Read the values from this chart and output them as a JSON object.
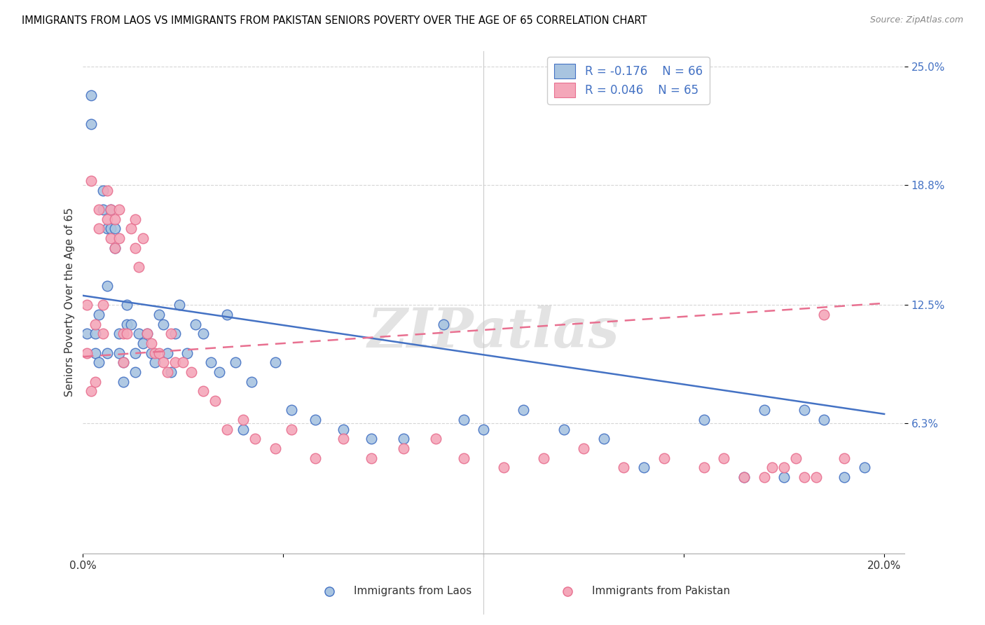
{
  "title": "IMMIGRANTS FROM LAOS VS IMMIGRANTS FROM PAKISTAN SENIORS POVERTY OVER THE AGE OF 65 CORRELATION CHART",
  "source": "Source: ZipAtlas.com",
  "ylabel": "Seniors Poverty Over the Age of 65",
  "xlabel_laos": "Immigrants from Laos",
  "xlabel_pakistan": "Immigrants from Pakistan",
  "xlim": [
    0.0,
    0.205
  ],
  "ylim": [
    -0.005,
    0.258
  ],
  "xticks": [
    0.0,
    0.05,
    0.1,
    0.15,
    0.2
  ],
  "xtick_labels": [
    "0.0%",
    "",
    "",
    "",
    "20.0%"
  ],
  "ytick_vals": [
    0.063,
    0.125,
    0.188,
    0.25
  ],
  "ytick_labels": [
    "6.3%",
    "12.5%",
    "18.8%",
    "25.0%"
  ],
  "laos_R": "-0.176",
  "laos_N": "66",
  "pakistan_R": "0.046",
  "pakistan_N": "65",
  "laos_color": "#a8c4e0",
  "pakistan_color": "#f4a7b9",
  "laos_line_color": "#4472c4",
  "pakistan_line_color": "#e87090",
  "watermark": "ZIPatlas",
  "laos_x": [
    0.001,
    0.002,
    0.002,
    0.003,
    0.003,
    0.004,
    0.004,
    0.005,
    0.005,
    0.006,
    0.006,
    0.006,
    0.007,
    0.007,
    0.008,
    0.008,
    0.009,
    0.009,
    0.01,
    0.01,
    0.011,
    0.011,
    0.012,
    0.013,
    0.013,
    0.014,
    0.015,
    0.016,
    0.017,
    0.018,
    0.019,
    0.02,
    0.021,
    0.022,
    0.023,
    0.024,
    0.026,
    0.028,
    0.03,
    0.032,
    0.034,
    0.036,
    0.038,
    0.04,
    0.042,
    0.048,
    0.052,
    0.058,
    0.065,
    0.072,
    0.08,
    0.09,
    0.095,
    0.1,
    0.11,
    0.12,
    0.13,
    0.14,
    0.155,
    0.165,
    0.17,
    0.175,
    0.18,
    0.185,
    0.19,
    0.195
  ],
  "laos_y": [
    0.11,
    0.235,
    0.22,
    0.11,
    0.1,
    0.12,
    0.095,
    0.185,
    0.175,
    0.165,
    0.135,
    0.1,
    0.175,
    0.165,
    0.165,
    0.155,
    0.11,
    0.1,
    0.095,
    0.085,
    0.125,
    0.115,
    0.115,
    0.1,
    0.09,
    0.11,
    0.105,
    0.11,
    0.1,
    0.095,
    0.12,
    0.115,
    0.1,
    0.09,
    0.11,
    0.125,
    0.1,
    0.115,
    0.11,
    0.095,
    0.09,
    0.12,
    0.095,
    0.06,
    0.085,
    0.095,
    0.07,
    0.065,
    0.06,
    0.055,
    0.055,
    0.115,
    0.065,
    0.06,
    0.07,
    0.06,
    0.055,
    0.04,
    0.065,
    0.035,
    0.07,
    0.035,
    0.07,
    0.065,
    0.035,
    0.04
  ],
  "pakistan_x": [
    0.001,
    0.001,
    0.002,
    0.002,
    0.003,
    0.003,
    0.004,
    0.004,
    0.005,
    0.005,
    0.006,
    0.006,
    0.007,
    0.007,
    0.008,
    0.008,
    0.009,
    0.009,
    0.01,
    0.01,
    0.011,
    0.012,
    0.013,
    0.013,
    0.014,
    0.015,
    0.016,
    0.017,
    0.018,
    0.019,
    0.02,
    0.021,
    0.022,
    0.023,
    0.025,
    0.027,
    0.03,
    0.033,
    0.036,
    0.04,
    0.043,
    0.048,
    0.052,
    0.058,
    0.065,
    0.072,
    0.08,
    0.088,
    0.095,
    0.105,
    0.115,
    0.125,
    0.135,
    0.145,
    0.155,
    0.16,
    0.165,
    0.17,
    0.172,
    0.175,
    0.178,
    0.18,
    0.183,
    0.185,
    0.19
  ],
  "pakistan_y": [
    0.125,
    0.1,
    0.19,
    0.08,
    0.115,
    0.085,
    0.175,
    0.165,
    0.125,
    0.11,
    0.185,
    0.17,
    0.175,
    0.16,
    0.17,
    0.155,
    0.175,
    0.16,
    0.11,
    0.095,
    0.11,
    0.165,
    0.17,
    0.155,
    0.145,
    0.16,
    0.11,
    0.105,
    0.1,
    0.1,
    0.095,
    0.09,
    0.11,
    0.095,
    0.095,
    0.09,
    0.08,
    0.075,
    0.06,
    0.065,
    0.055,
    0.05,
    0.06,
    0.045,
    0.055,
    0.045,
    0.05,
    0.055,
    0.045,
    0.04,
    0.045,
    0.05,
    0.04,
    0.045,
    0.04,
    0.045,
    0.035,
    0.035,
    0.04,
    0.04,
    0.045,
    0.035,
    0.035,
    0.12,
    0.045
  ],
  "laos_line_x0": 0.0,
  "laos_line_x1": 0.2,
  "laos_line_y0": 0.13,
  "laos_line_y1": 0.068,
  "pak_line_x0": 0.0,
  "pak_line_x1": 0.2,
  "pak_line_y0": 0.098,
  "pak_line_y1": 0.126
}
